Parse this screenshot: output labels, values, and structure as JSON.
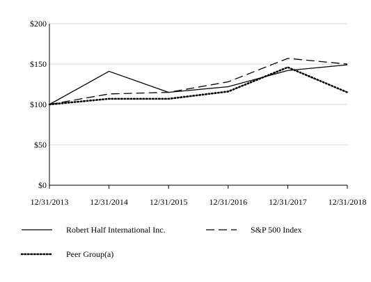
{
  "chart_data": {
    "type": "line",
    "title": "",
    "xlabel": "",
    "ylabel": "",
    "categories": [
      "12/31/2013",
      "12/31/2014",
      "12/31/2015",
      "12/31/2016",
      "12/31/2017",
      "12/31/2018"
    ],
    "ylim": [
      0,
      200
    ],
    "yticks": [
      0,
      50,
      100,
      150,
      200
    ],
    "ytick_labels": [
      "$0",
      "$50",
      "$100",
      "$150",
      "$200"
    ],
    "grid": "horizontal",
    "legend_position": "bottom",
    "series": [
      {
        "name": "Robert Half International Inc.",
        "style": "solid",
        "color": "#000000",
        "values": [
          100,
          141,
          115,
          122,
          142,
          149
        ]
      },
      {
        "name": "S&P 500 Index",
        "style": "dashed",
        "color": "#000000",
        "values": [
          100,
          113,
          115,
          128,
          157,
          150
        ]
      },
      {
        "name": "Peer Group(a)",
        "style": "dotted",
        "color": "#000000",
        "values": [
          100,
          107,
          107,
          116,
          146,
          115
        ]
      }
    ]
  }
}
